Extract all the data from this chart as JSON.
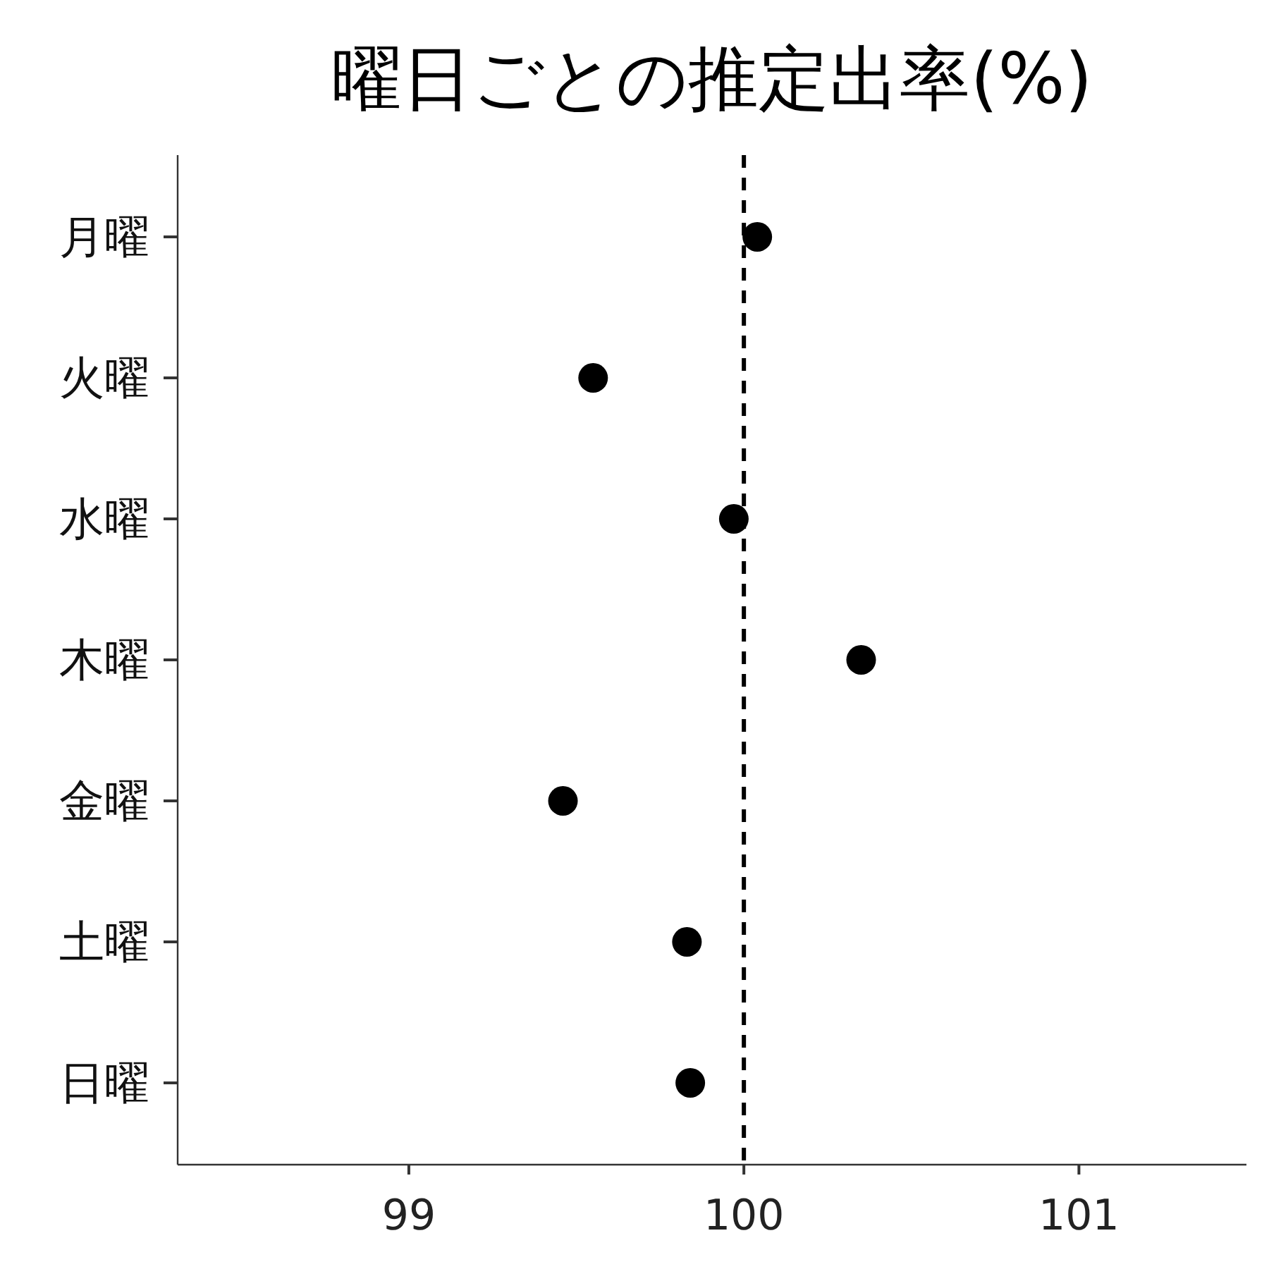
{
  "chart_data": {
    "type": "scatter",
    "orientation": "horizontal",
    "title": "曜日ごとの推定出率(%)",
    "categories": [
      "月曜",
      "火曜",
      "水曜",
      "木曜",
      "金曜",
      "土曜",
      "日曜"
    ],
    "series": [
      {
        "color": "#000000",
        "values": [
          100.04,
          99.55,
          99.97,
          100.35,
          99.46,
          99.83,
          99.84
        ]
      }
    ],
    "xlim": [
      98.31,
      101.5
    ],
    "xticks": [
      99,
      100,
      101
    ],
    "marker": "circle",
    "grid": false,
    "ref_lines": [
      {
        "axis": "x",
        "value": 100,
        "color": "#000000",
        "line_style": "dashed"
      }
    ]
  }
}
